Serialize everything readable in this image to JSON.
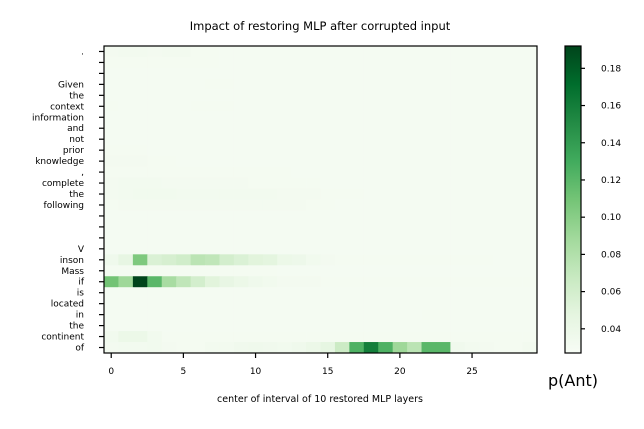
{
  "chart_data": {
    "type": "heatmap",
    "title": "Impact of restoring MLP after corrupted input",
    "xlabel": "center of interval of 10 restored MLP layers",
    "ylabel": "",
    "xticks": [
      0,
      5,
      10,
      15,
      20,
      25
    ],
    "xlim": [
      -0.5,
      29.5
    ],
    "colorbar": {
      "label": "p(Ant)",
      "ticks": [
        0.04,
        0.06,
        0.08,
        0.1,
        0.12,
        0.14,
        0.16,
        0.18
      ],
      "tick_labels": [
        "0.04",
        "0.06",
        "0.08",
        "0.10",
        "0.12",
        "0.14",
        "0.16",
        "0.18"
      ],
      "vmin": 0.027,
      "vmax": 0.192,
      "colormap": "Greens"
    },
    "tokens": [
      ".",
      "",
      "",
      "Given",
      "the",
      "context",
      "information",
      "and",
      "not",
      "prior",
      "knowledge",
      ",",
      "complete",
      "the",
      "following",
      "",
      "",
      "",
      "V",
      "inson",
      "Mass",
      "if",
      "is",
      "located",
      "in",
      "the",
      "continent",
      "of"
    ],
    "values": [
      [
        0.032,
        0.033,
        0.033,
        0.032,
        0.033,
        0.033,
        0.031,
        0.031,
        0.03,
        0.03,
        0.03,
        0.03,
        0.03,
        0.03,
        0.03,
        0.03,
        0.03,
        0.03,
        0.03,
        0.03,
        0.03,
        0.03,
        0.03,
        0.03,
        0.03,
        0.03,
        0.03,
        0.03,
        0.03,
        0.03
      ],
      [
        0.031,
        0.031,
        0.031,
        0.031,
        0.031,
        0.031,
        0.031,
        0.031,
        0.03,
        0.03,
        0.03,
        0.03,
        0.03,
        0.03,
        0.03,
        0.03,
        0.03,
        0.03,
        0.03,
        0.03,
        0.03,
        0.03,
        0.03,
        0.03,
        0.03,
        0.03,
        0.03,
        0.03,
        0.03,
        0.03
      ],
      [
        0.03,
        0.03,
        0.03,
        0.03,
        0.03,
        0.03,
        0.03,
        0.03,
        0.03,
        0.03,
        0.03,
        0.03,
        0.03,
        0.03,
        0.03,
        0.03,
        0.03,
        0.03,
        0.03,
        0.03,
        0.03,
        0.03,
        0.03,
        0.03,
        0.03,
        0.03,
        0.03,
        0.03,
        0.03,
        0.03
      ],
      [
        0.03,
        0.03,
        0.03,
        0.03,
        0.03,
        0.03,
        0.03,
        0.031,
        0.031,
        0.03,
        0.03,
        0.03,
        0.03,
        0.03,
        0.03,
        0.03,
        0.03,
        0.03,
        0.03,
        0.03,
        0.03,
        0.03,
        0.03,
        0.03,
        0.03,
        0.03,
        0.03,
        0.03,
        0.03,
        0.03
      ],
      [
        0.03,
        0.03,
        0.03,
        0.03,
        0.03,
        0.03,
        0.03,
        0.03,
        0.03,
        0.03,
        0.03,
        0.03,
        0.03,
        0.03,
        0.03,
        0.03,
        0.03,
        0.03,
        0.03,
        0.03,
        0.03,
        0.03,
        0.03,
        0.03,
        0.03,
        0.03,
        0.03,
        0.03,
        0.03,
        0.03
      ],
      [
        0.031,
        0.03,
        0.03,
        0.03,
        0.03,
        0.03,
        0.031,
        0.031,
        0.031,
        0.03,
        0.03,
        0.03,
        0.03,
        0.03,
        0.03,
        0.03,
        0.03,
        0.03,
        0.03,
        0.03,
        0.03,
        0.03,
        0.03,
        0.03,
        0.03,
        0.03,
        0.03,
        0.03,
        0.03,
        0.03
      ],
      [
        0.03,
        0.03,
        0.03,
        0.03,
        0.03,
        0.03,
        0.03,
        0.03,
        0.03,
        0.03,
        0.03,
        0.03,
        0.03,
        0.03,
        0.03,
        0.03,
        0.03,
        0.03,
        0.03,
        0.03,
        0.03,
        0.03,
        0.03,
        0.03,
        0.03,
        0.03,
        0.03,
        0.03,
        0.03,
        0.03
      ],
      [
        0.03,
        0.03,
        0.03,
        0.03,
        0.03,
        0.03,
        0.03,
        0.03,
        0.03,
        0.03,
        0.03,
        0.03,
        0.03,
        0.03,
        0.03,
        0.03,
        0.03,
        0.03,
        0.03,
        0.03,
        0.03,
        0.03,
        0.03,
        0.03,
        0.03,
        0.03,
        0.03,
        0.03,
        0.03,
        0.03
      ],
      [
        0.03,
        0.03,
        0.03,
        0.03,
        0.03,
        0.03,
        0.03,
        0.03,
        0.03,
        0.03,
        0.03,
        0.03,
        0.03,
        0.03,
        0.03,
        0.03,
        0.03,
        0.03,
        0.03,
        0.03,
        0.03,
        0.03,
        0.03,
        0.03,
        0.03,
        0.03,
        0.03,
        0.03,
        0.03,
        0.03
      ],
      [
        0.031,
        0.031,
        0.031,
        0.03,
        0.03,
        0.03,
        0.03,
        0.03,
        0.03,
        0.03,
        0.03,
        0.03,
        0.03,
        0.03,
        0.03,
        0.03,
        0.03,
        0.03,
        0.03,
        0.03,
        0.03,
        0.03,
        0.03,
        0.03,
        0.03,
        0.03,
        0.03,
        0.03,
        0.03,
        0.03
      ],
      [
        0.032,
        0.032,
        0.032,
        0.031,
        0.031,
        0.03,
        0.03,
        0.03,
        0.03,
        0.03,
        0.03,
        0.03,
        0.03,
        0.03,
        0.03,
        0.03,
        0.03,
        0.03,
        0.03,
        0.03,
        0.03,
        0.03,
        0.03,
        0.03,
        0.03,
        0.03,
        0.03,
        0.03,
        0.03,
        0.03
      ],
      [
        0.031,
        0.031,
        0.031,
        0.031,
        0.031,
        0.031,
        0.031,
        0.031,
        0.031,
        0.031,
        0.031,
        0.031,
        0.031,
        0.03,
        0.03,
        0.03,
        0.03,
        0.03,
        0.03,
        0.03,
        0.03,
        0.03,
        0.03,
        0.03,
        0.03,
        0.03,
        0.03,
        0.03,
        0.03,
        0.03
      ],
      [
        0.032,
        0.033,
        0.033,
        0.033,
        0.032,
        0.032,
        0.032,
        0.032,
        0.032,
        0.032,
        0.031,
        0.031,
        0.031,
        0.031,
        0.031,
        0.03,
        0.03,
        0.03,
        0.03,
        0.03,
        0.03,
        0.03,
        0.03,
        0.03,
        0.03,
        0.03,
        0.03,
        0.03,
        0.03,
        0.03
      ],
      [
        0.032,
        0.033,
        0.034,
        0.034,
        0.034,
        0.033,
        0.033,
        0.033,
        0.033,
        0.033,
        0.033,
        0.033,
        0.032,
        0.032,
        0.032,
        0.031,
        0.031,
        0.031,
        0.03,
        0.03,
        0.03,
        0.03,
        0.03,
        0.03,
        0.03,
        0.03,
        0.03,
        0.03,
        0.03,
        0.03
      ],
      [
        0.031,
        0.032,
        0.032,
        0.032,
        0.032,
        0.032,
        0.032,
        0.032,
        0.032,
        0.032,
        0.032,
        0.032,
        0.032,
        0.032,
        0.031,
        0.031,
        0.03,
        0.03,
        0.03,
        0.03,
        0.03,
        0.03,
        0.03,
        0.03,
        0.03,
        0.03,
        0.03,
        0.03,
        0.03,
        0.03
      ],
      [
        0.03,
        0.03,
        0.03,
        0.03,
        0.03,
        0.03,
        0.03,
        0.03,
        0.03,
        0.03,
        0.03,
        0.03,
        0.03,
        0.03,
        0.03,
        0.03,
        0.03,
        0.03,
        0.03,
        0.03,
        0.03,
        0.03,
        0.03,
        0.03,
        0.03,
        0.03,
        0.03,
        0.03,
        0.03,
        0.03
      ],
      [
        0.03,
        0.03,
        0.03,
        0.03,
        0.03,
        0.03,
        0.03,
        0.03,
        0.03,
        0.03,
        0.03,
        0.03,
        0.03,
        0.03,
        0.03,
        0.03,
        0.03,
        0.03,
        0.03,
        0.03,
        0.03,
        0.03,
        0.03,
        0.03,
        0.03,
        0.03,
        0.03,
        0.03,
        0.03,
        0.03
      ],
      [
        0.03,
        0.03,
        0.03,
        0.03,
        0.03,
        0.03,
        0.03,
        0.03,
        0.03,
        0.03,
        0.03,
        0.03,
        0.03,
        0.03,
        0.03,
        0.03,
        0.03,
        0.03,
        0.03,
        0.03,
        0.03,
        0.03,
        0.03,
        0.03,
        0.03,
        0.03,
        0.03,
        0.03,
        0.03,
        0.03
      ],
      [
        0.03,
        0.03,
        0.03,
        0.03,
        0.03,
        0.03,
        0.03,
        0.03,
        0.03,
        0.03,
        0.03,
        0.03,
        0.03,
        0.03,
        0.03,
        0.03,
        0.03,
        0.03,
        0.03,
        0.03,
        0.03,
        0.03,
        0.03,
        0.03,
        0.03,
        0.03,
        0.03,
        0.03,
        0.03,
        0.03
      ],
      [
        0.036,
        0.045,
        0.105,
        0.055,
        0.058,
        0.062,
        0.075,
        0.072,
        0.06,
        0.055,
        0.05,
        0.048,
        0.04,
        0.038,
        0.034,
        0.032,
        0.031,
        0.031,
        0.031,
        0.031,
        0.031,
        0.031,
        0.031,
        0.031,
        0.031,
        0.031,
        0.031,
        0.03,
        0.03,
        0.03
      ],
      [
        0.031,
        0.031,
        0.031,
        0.031,
        0.031,
        0.031,
        0.031,
        0.031,
        0.031,
        0.031,
        0.031,
        0.031,
        0.03,
        0.03,
        0.03,
        0.03,
        0.03,
        0.03,
        0.03,
        0.03,
        0.03,
        0.03,
        0.03,
        0.03,
        0.03,
        0.03,
        0.03,
        0.03,
        0.03,
        0.03
      ],
      [
        0.11,
        0.09,
        0.192,
        0.12,
        0.085,
        0.072,
        0.06,
        0.05,
        0.044,
        0.04,
        0.036,
        0.034,
        0.032,
        0.032,
        0.032,
        0.031,
        0.031,
        0.031,
        0.031,
        0.031,
        0.031,
        0.031,
        0.031,
        0.031,
        0.031,
        0.031,
        0.031,
        0.031,
        0.031,
        0.031
      ],
      [
        0.03,
        0.03,
        0.03,
        0.03,
        0.03,
        0.03,
        0.03,
        0.03,
        0.03,
        0.03,
        0.03,
        0.03,
        0.03,
        0.03,
        0.03,
        0.03,
        0.03,
        0.03,
        0.03,
        0.03,
        0.03,
        0.03,
        0.03,
        0.03,
        0.03,
        0.03,
        0.03,
        0.03,
        0.03,
        0.03
      ],
      [
        0.03,
        0.03,
        0.03,
        0.03,
        0.03,
        0.03,
        0.03,
        0.03,
        0.03,
        0.03,
        0.03,
        0.03,
        0.03,
        0.03,
        0.03,
        0.03,
        0.03,
        0.03,
        0.03,
        0.03,
        0.03,
        0.03,
        0.03,
        0.03,
        0.03,
        0.03,
        0.03,
        0.03,
        0.03,
        0.03
      ],
      [
        0.03,
        0.03,
        0.03,
        0.03,
        0.03,
        0.03,
        0.03,
        0.03,
        0.03,
        0.03,
        0.03,
        0.03,
        0.03,
        0.03,
        0.03,
        0.03,
        0.03,
        0.03,
        0.03,
        0.03,
        0.03,
        0.03,
        0.031,
        0.031,
        0.03,
        0.03,
        0.03,
        0.03,
        0.03,
        0.03
      ],
      [
        0.03,
        0.03,
        0.03,
        0.03,
        0.03,
        0.03,
        0.03,
        0.03,
        0.03,
        0.03,
        0.03,
        0.03,
        0.03,
        0.03,
        0.03,
        0.03,
        0.03,
        0.03,
        0.03,
        0.03,
        0.03,
        0.03,
        0.03,
        0.03,
        0.03,
        0.03,
        0.03,
        0.03,
        0.03,
        0.03
      ],
      [
        0.034,
        0.04,
        0.04,
        0.034,
        0.031,
        0.031,
        0.031,
        0.031,
        0.031,
        0.031,
        0.031,
        0.031,
        0.031,
        0.031,
        0.031,
        0.031,
        0.031,
        0.031,
        0.031,
        0.031,
        0.031,
        0.031,
        0.031,
        0.031,
        0.031,
        0.031,
        0.031,
        0.031,
        0.031,
        0.031
      ],
      [
        0.032,
        0.033,
        0.033,
        0.034,
        0.032,
        0.031,
        0.031,
        0.033,
        0.033,
        0.035,
        0.036,
        0.035,
        0.034,
        0.036,
        0.04,
        0.046,
        0.065,
        0.125,
        0.16,
        0.125,
        0.09,
        0.075,
        0.12,
        0.12,
        0.035,
        0.033,
        0.032,
        0.031,
        0.031,
        0.033
      ]
    ]
  }
}
